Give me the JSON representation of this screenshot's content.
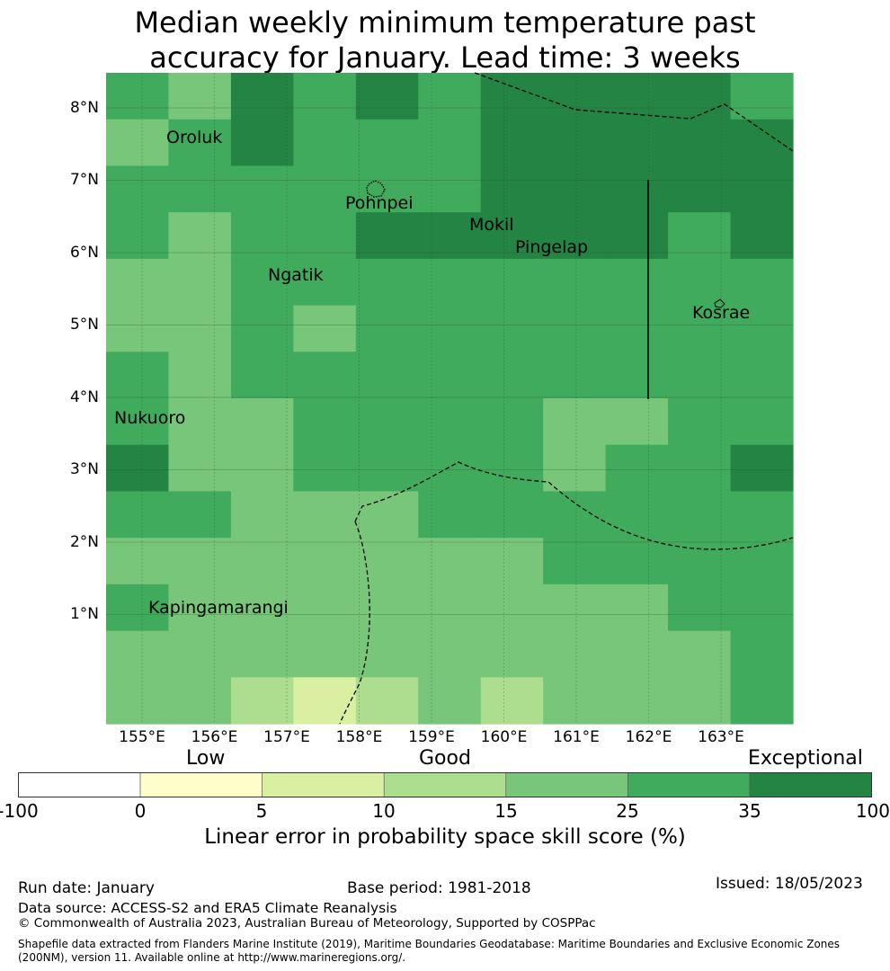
{
  "title_line1": "Median weekly minimum temperature past",
  "title_line2": "accuracy for January. Lead time: 3 weeks",
  "map": {
    "lon_labels": [
      "155°E",
      "156°E",
      "157°E",
      "158°E",
      "159°E",
      "160°E",
      "161°E",
      "162°E",
      "163°E"
    ],
    "lat_labels": [
      "8°N",
      "7°N",
      "6°N",
      "5°N",
      "4°N",
      "3°N",
      "2°N",
      "1°N"
    ],
    "places": {
      "oroluk": "Oroluk",
      "pohnpei": "Pohnpei",
      "mokil": "Mokil",
      "pingelap": "Pingelap",
      "ngatik": "Ngatik",
      "kosrae": "Kosrae",
      "nukuoro": "Nukuoro",
      "kapingamarangi": "Kapingamarangi"
    },
    "grid_values": [
      [
        25,
        15,
        35,
        25,
        35,
        25,
        35,
        35,
        35,
        35,
        25
      ],
      [
        15,
        25,
        35,
        25,
        25,
        25,
        35,
        35,
        35,
        35,
        35
      ],
      [
        25,
        25,
        25,
        25,
        25,
        25,
        35,
        35,
        35,
        35,
        35
      ],
      [
        25,
        15,
        25,
        25,
        35,
        35,
        35,
        35,
        35,
        25,
        35
      ],
      [
        15,
        15,
        25,
        25,
        25,
        25,
        25,
        25,
        25,
        25,
        25
      ],
      [
        15,
        15,
        25,
        15,
        25,
        25,
        25,
        25,
        25,
        25,
        25
      ],
      [
        25,
        15,
        25,
        25,
        25,
        25,
        25,
        25,
        25,
        25,
        25
      ],
      [
        25,
        15,
        15,
        25,
        25,
        25,
        25,
        15,
        15,
        25,
        25
      ],
      [
        35,
        15,
        15,
        25,
        25,
        25,
        25,
        15,
        25,
        25,
        35
      ],
      [
        25,
        25,
        15,
        15,
        15,
        25,
        25,
        25,
        25,
        25,
        25
      ],
      [
        15,
        15,
        15,
        15,
        15,
        15,
        15,
        25,
        25,
        25,
        25
      ],
      [
        25,
        15,
        15,
        15,
        15,
        15,
        15,
        15,
        15,
        25,
        25
      ],
      [
        15,
        15,
        15,
        15,
        15,
        15,
        15,
        15,
        15,
        15,
        25
      ],
      [
        15,
        15,
        10,
        5,
        10,
        15,
        10,
        15,
        15,
        15,
        25
      ]
    ]
  },
  "legend": {
    "categories": {
      "low": "Low",
      "good": "Good",
      "exceptional": "Exceptional"
    },
    "ticks": [
      "-100",
      "0",
      "5",
      "10",
      "15",
      "25",
      "35",
      "100"
    ],
    "colors": [
      "#ffffff",
      "#ffffcc",
      "#d9f0a3",
      "#addd8e",
      "#78c679",
      "#41ab5d",
      "#238443"
    ],
    "title": "Linear error in probability space skill score (%)"
  },
  "footer": {
    "run_date": "Run date: January",
    "base_period": "Base period: 1981-2018",
    "issued": "Issued: 18/05/2023",
    "data_source": "Data source: ACCESS-S2 and ERA5 Climate Reanalysis",
    "copyright": "© Commonwealth of Australia 2023, Australian Bureau of Meteorology, Supported by COSPPac",
    "shapefile": "Shapefile data extracted from Flanders Marine Institute (2019), Maritime Boundaries Geodatabase: Maritime Boundaries and Exclusive Economic Zones (200NM), version 11. Available online at http://www.marineregions.org/."
  }
}
